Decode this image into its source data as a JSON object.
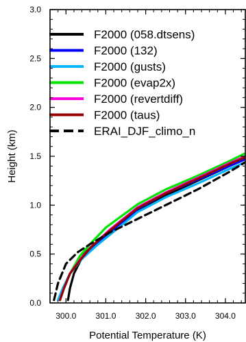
{
  "chart_data": {
    "type": "line",
    "xlabel": "Potential Temperature (K)",
    "ylabel": "Height (km)",
    "xlim": [
      299.6,
      304.5
    ],
    "ylim": [
      0.0,
      3.0
    ],
    "x_ticks": [
      300.0,
      301.0,
      302.0,
      303.0,
      304.0
    ],
    "x_tick_labels": [
      "300.0",
      "301.0",
      "302.0",
      "303.0",
      "304.0"
    ],
    "y_ticks": [
      0.0,
      0.5,
      1.0,
      1.5,
      2.0,
      2.5,
      3.0
    ],
    "y_tick_labels": [
      "0.0",
      "0.5",
      "1.0",
      "1.5",
      "2.0",
      "2.5",
      "3.0"
    ],
    "grid": false,
    "legend_position": "top-right",
    "series": [
      {
        "name": "F2000 (058.dtsens)",
        "color": "#000000",
        "dash": "solid",
        "x": [
          300.05,
          300.1,
          300.2,
          300.45,
          300.7,
          301.2,
          301.8,
          302.5,
          303.3,
          304.1,
          304.5
        ],
        "y": [
          0.03,
          0.15,
          0.3,
          0.5,
          0.6,
          0.75,
          0.95,
          1.1,
          1.25,
          1.4,
          1.47
        ]
      },
      {
        "name": "F2000 (132)",
        "color": "#0000ff",
        "dash": "solid",
        "x": [
          299.85,
          299.95,
          300.1,
          300.4,
          300.7,
          301.2,
          301.8,
          302.5,
          303.3,
          304.1,
          304.5
        ],
        "y": [
          0.03,
          0.15,
          0.3,
          0.45,
          0.58,
          0.75,
          0.96,
          1.12,
          1.26,
          1.4,
          1.47
        ]
      },
      {
        "name": "F2000 (gusts)",
        "color": "#00b4ff",
        "dash": "solid",
        "x": [
          299.8,
          299.92,
          300.1,
          300.4,
          300.75,
          301.2,
          301.8,
          302.5,
          303.3,
          304.1,
          304.5
        ],
        "y": [
          0.03,
          0.15,
          0.3,
          0.45,
          0.58,
          0.73,
          0.93,
          1.08,
          1.22,
          1.37,
          1.44
        ]
      },
      {
        "name": "F2000 (evap2x)",
        "color": "#00e600",
        "dash": "solid",
        "x": [
          299.85,
          299.95,
          300.1,
          300.35,
          300.6,
          301.0,
          301.8,
          302.5,
          303.3,
          304.1,
          304.5
        ],
        "y": [
          0.03,
          0.15,
          0.3,
          0.48,
          0.6,
          0.77,
          1.01,
          1.16,
          1.3,
          1.45,
          1.53
        ]
      },
      {
        "name": "F2000 (revertdiff)",
        "color": "#ff00dc",
        "dash": "solid",
        "x": [
          299.85,
          299.95,
          300.1,
          300.38,
          300.65,
          301.1,
          301.8,
          302.5,
          303.3,
          304.1,
          304.5
        ],
        "y": [
          0.03,
          0.15,
          0.3,
          0.46,
          0.58,
          0.75,
          0.98,
          1.13,
          1.28,
          1.43,
          1.5
        ]
      },
      {
        "name": "F2000 (taus)",
        "color": "#960000",
        "dash": "solid",
        "x": [
          299.85,
          299.95,
          300.1,
          300.4,
          300.65,
          301.1,
          301.8,
          302.5,
          303.3,
          304.1,
          304.5
        ],
        "y": [
          0.03,
          0.15,
          0.3,
          0.46,
          0.58,
          0.74,
          0.97,
          1.12,
          1.27,
          1.42,
          1.49
        ]
      },
      {
        "name": "ERAI_DJF_climo_n",
        "color": "#000000",
        "dash": "dashed",
        "x": [
          299.7,
          299.8,
          300.0,
          300.3,
          300.6,
          301.1,
          301.8,
          302.5,
          303.3,
          304.1,
          304.5
        ],
        "y": [
          0.03,
          0.2,
          0.4,
          0.52,
          0.6,
          0.72,
          0.86,
          1.0,
          1.16,
          1.34,
          1.44
        ]
      }
    ]
  }
}
